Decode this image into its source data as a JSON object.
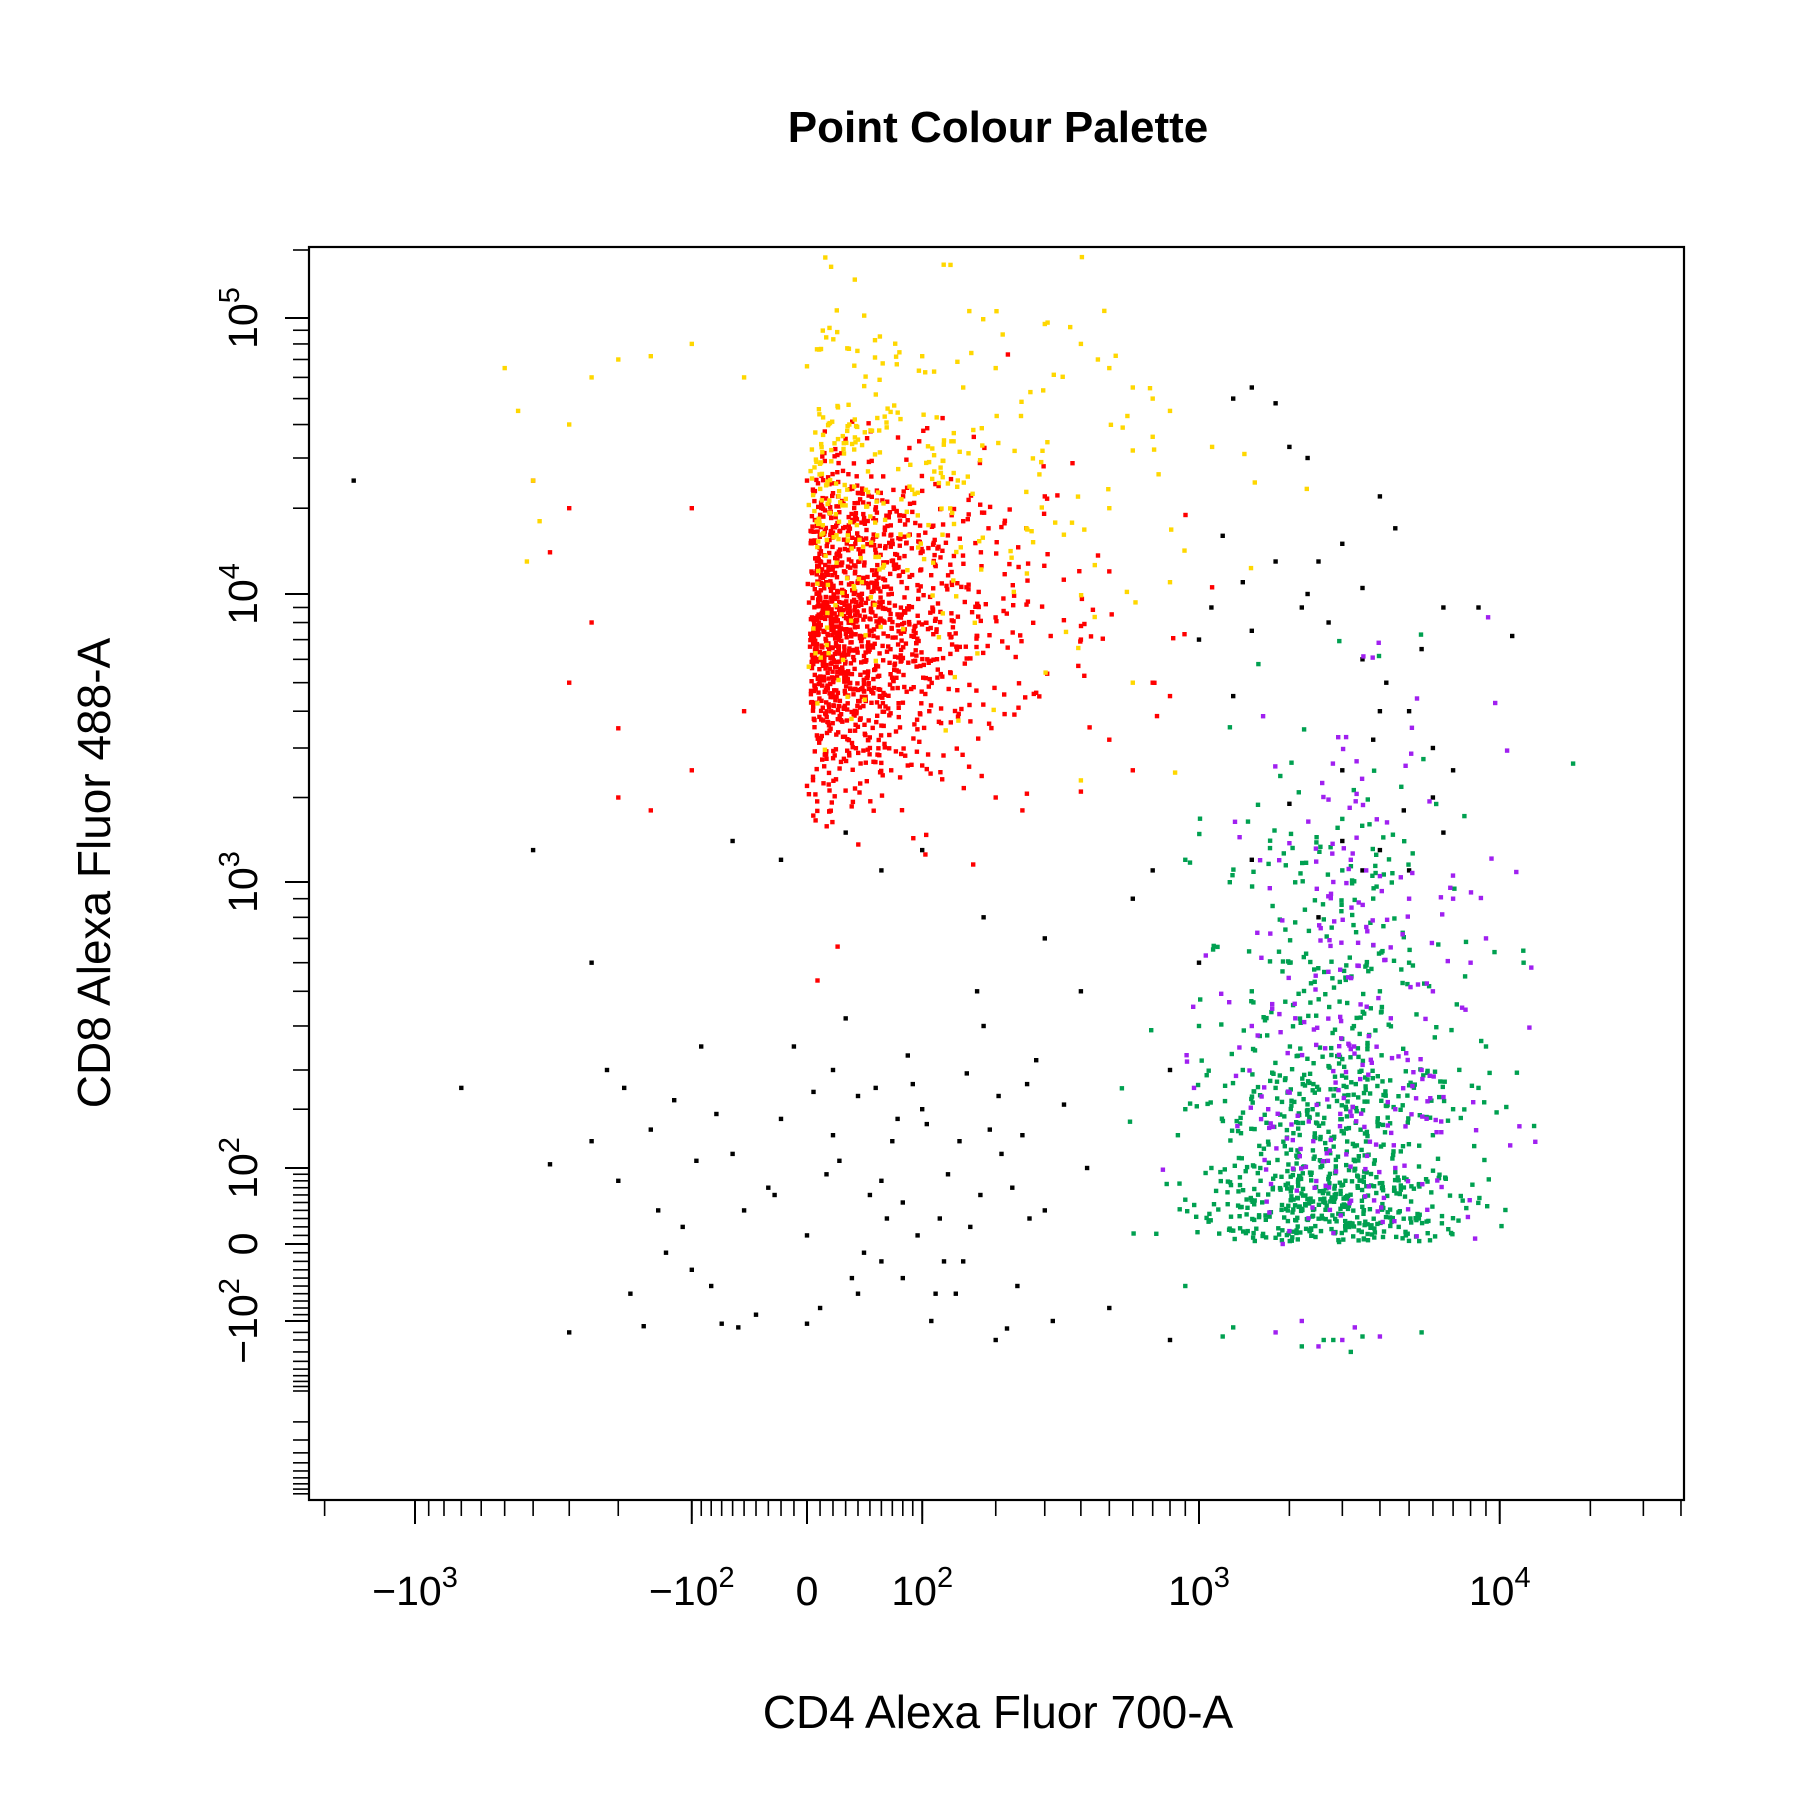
{
  "chart_data": {
    "type": "scatter",
    "title": "Point Colour Palette",
    "xlabel": "CD4 Alexa Fluor 700-A",
    "ylabel": "CD8 Alexa Fluor 488-A",
    "scale": "biexponential (logicle)",
    "grid": false,
    "legend": "none",
    "xlim": [
      -2000,
      20000
    ],
    "ylim": [
      -500,
      170000
    ],
    "x_ticks": [
      {
        "value": -1000,
        "label": "−10",
        "exp": "3"
      },
      {
        "value": -100,
        "label": "−10",
        "exp": "2"
      },
      {
        "value": 0,
        "label": "0",
        "exp": ""
      },
      {
        "value": 100,
        "label": "10",
        "exp": "2"
      },
      {
        "value": 1000,
        "label": "10",
        "exp": "3"
      },
      {
        "value": 10000,
        "label": "10",
        "exp": "4"
      }
    ],
    "y_ticks": [
      {
        "value": -100,
        "label": "−10",
        "exp": "2"
      },
      {
        "value": 0,
        "label": "0",
        "exp": ""
      },
      {
        "value": 100,
        "label": "10",
        "exp": "2"
      },
      {
        "value": 1000,
        "label": "10",
        "exp": "3"
      },
      {
        "value": 10000,
        "label": "10",
        "exp": "4"
      },
      {
        "value": 100000,
        "label": "10",
        "exp": "5"
      }
    ],
    "colors": {
      "black": "#000000",
      "red": "#ff0000",
      "yellow": "#ffd700",
      "green": "#00a050",
      "purple": "#a020f0"
    },
    "series": [
      {
        "color": "#000000",
        "points": [
          [
            -1600,
            25000
          ],
          [
            -700,
            250
          ],
          [
            -400,
            1300
          ],
          [
            -350,
            105
          ],
          [
            -250,
            600
          ],
          [
            -300,
            -200
          ],
          [
            -150,
            160
          ],
          [
            -80,
            -50
          ],
          [
            -50,
            40
          ],
          [
            0,
            10
          ],
          [
            20,
            300
          ],
          [
            40,
            -60
          ],
          [
            60,
            80
          ],
          [
            80,
            -40
          ],
          [
            100,
            200
          ],
          [
            120,
            30
          ],
          [
            150,
            -20
          ],
          [
            170,
            500
          ],
          [
            200,
            -300
          ],
          [
            250,
            150
          ],
          [
            300,
            40
          ],
          [
            -200,
            80
          ],
          [
            -180,
            -60
          ],
          [
            -120,
            220
          ],
          [
            -90,
            350
          ],
          [
            -60,
            120
          ],
          [
            -40,
            -90
          ],
          [
            -20,
            180
          ],
          [
            10,
            -80
          ],
          [
            30,
            420
          ],
          [
            50,
            60
          ],
          [
            70,
            140
          ],
          [
            90,
            260
          ],
          [
            110,
            -100
          ],
          [
            130,
            90
          ],
          [
            160,
            20
          ],
          [
            190,
            160
          ],
          [
            230,
            70
          ],
          [
            280,
            320
          ],
          [
            350,
            210
          ],
          [
            420,
            100
          ],
          [
            500,
            -80
          ],
          [
            -140,
            40
          ],
          [
            -100,
            -30
          ],
          [
            -75,
            190
          ],
          [
            -30,
            70
          ],
          [
            5,
            240
          ],
          [
            25,
            110
          ],
          [
            45,
            -10
          ],
          [
            65,
            30
          ],
          [
            85,
            330
          ],
          [
            105,
            170
          ],
          [
            140,
            -60
          ],
          [
            180,
            400
          ],
          [
            220,
            -160
          ],
          [
            260,
            260
          ],
          [
            320,
            -100
          ],
          [
            -220,
            300
          ],
          [
            -160,
            -140
          ],
          [
            -110,
            20
          ],
          [
            -70,
            -120
          ],
          [
            -10,
            350
          ],
          [
            15,
            90
          ],
          [
            35,
            -40
          ],
          [
            55,
            250
          ],
          [
            75,
            180
          ],
          [
            95,
            10
          ],
          [
            125,
            -20
          ],
          [
            155,
            290
          ],
          [
            210,
            120
          ],
          [
            240,
            -50
          ],
          [
            -250,
            140
          ],
          [
            -190,
            250
          ],
          [
            -130,
            -10
          ],
          [
            -95,
            110
          ],
          [
            -55,
            -150
          ],
          [
            -25,
            60
          ],
          [
            0,
            -120
          ],
          [
            20,
            150
          ],
          [
            40,
            230
          ],
          [
            60,
            -20
          ],
          [
            80,
            50
          ],
          [
            115,
            -60
          ],
          [
            145,
            140
          ],
          [
            175,
            60
          ],
          [
            205,
            230
          ],
          [
            265,
            30
          ],
          [
            -60,
            1400
          ],
          [
            -20,
            1200
          ],
          [
            30,
            1500
          ],
          [
            60,
            1100
          ],
          [
            100,
            1300
          ],
          [
            180,
            800
          ],
          [
            300,
            700
          ],
          [
            400,
            500
          ],
          [
            600,
            900
          ],
          [
            700,
            1100
          ],
          [
            800,
            -300
          ],
          [
            1300,
            50000
          ],
          [
            1500,
            55000
          ],
          [
            1800,
            48000
          ],
          [
            2000,
            33000
          ],
          [
            2300,
            30000
          ],
          [
            1200,
            16000
          ],
          [
            1400,
            11000
          ],
          [
            1800,
            13000
          ],
          [
            2500,
            13000
          ],
          [
            3000,
            15000
          ],
          [
            4000,
            22000
          ],
          [
            4500,
            17000
          ],
          [
            2200,
            9000
          ],
          [
            2700,
            8000
          ],
          [
            3500,
            6000
          ],
          [
            4200,
            5000
          ],
          [
            5000,
            4000
          ],
          [
            6000,
            3000
          ],
          [
            3000,
            2500
          ],
          [
            3800,
            3200
          ],
          [
            4800,
            1800
          ],
          [
            6500,
            1500
          ],
          [
            2000,
            1900
          ],
          [
            3000,
            1400
          ],
          [
            4000,
            1300
          ],
          [
            5000,
            1100
          ],
          [
            6500,
            9000
          ],
          [
            8500,
            9000
          ],
          [
            11000,
            7200
          ],
          [
            5500,
            6500
          ],
          [
            6000,
            2000
          ],
          [
            7000,
            2500
          ],
          [
            3500,
            10500
          ],
          [
            1300,
            4500
          ],
          [
            1000,
            7000
          ],
          [
            1100,
            9000
          ],
          [
            1500,
            7500
          ],
          [
            2300,
            10000
          ],
          [
            4000,
            4000
          ],
          [
            2500,
            800
          ],
          [
            1500,
            1200
          ],
          [
            3500,
            1100
          ],
          [
            1000,
            600
          ],
          [
            800,
            300
          ]
        ]
      },
      {
        "color": "#ff0000",
        "cluster": {
          "cx": 40,
          "cy": 8000,
          "n": 1400,
          "x_sd_log": 0.45,
          "y_sd_log": 0.28
        },
        "points": [
          [
            -400,
            25000
          ],
          [
            -300,
            20000
          ],
          [
            -350,
            14000
          ],
          [
            -250,
            8000
          ],
          [
            -300,
            5000
          ],
          [
            -200,
            3500
          ],
          [
            -200,
            2000
          ],
          [
            -150,
            1800
          ],
          [
            -100,
            2500
          ],
          [
            200,
            2000
          ],
          [
            250,
            1800
          ],
          [
            400,
            2100
          ],
          [
            500,
            3200
          ],
          [
            600,
            2500
          ],
          [
            700,
            5000
          ],
          [
            800,
            4500
          ],
          [
            400,
            7000
          ],
          [
            300,
            22000
          ],
          [
            500,
            12000
          ],
          [
            -100,
            20000
          ],
          [
            0,
            25000
          ],
          [
            100,
            23000
          ],
          [
            150,
            18000
          ],
          [
            -50,
            4000
          ],
          [
            50,
            3000
          ],
          [
            100,
            2600
          ],
          [
            0,
            2200
          ]
        ]
      },
      {
        "color": "#ffd700",
        "cluster": {
          "cx": 60,
          "cy": 25000,
          "n": 330,
          "x_sd_log": 0.55,
          "y_sd_log": 0.35
        },
        "points": [
          [
            -500,
            65000
          ],
          [
            -450,
            45000
          ],
          [
            -400,
            25000
          ],
          [
            -380,
            18000
          ],
          [
            -420,
            13000
          ],
          [
            -250,
            60000
          ],
          [
            -200,
            70000
          ],
          [
            -150,
            72000
          ],
          [
            -100,
            80000
          ],
          [
            0,
            66000
          ],
          [
            100,
            72000
          ],
          [
            200,
            65000
          ],
          [
            300,
            95000
          ],
          [
            400,
            80000
          ],
          [
            500,
            65000
          ],
          [
            600,
            55000
          ],
          [
            700,
            50000
          ],
          [
            800,
            45000
          ],
          [
            700,
            36000
          ],
          [
            600,
            32000
          ],
          [
            500,
            20000
          ],
          [
            600,
            5000
          ],
          [
            400,
            2300
          ],
          [
            800,
            11000
          ],
          [
            -300,
            40000
          ],
          [
            -50,
            60000
          ],
          [
            150,
            55000
          ]
        ]
      },
      {
        "color": "#00a050",
        "cluster": {
          "cx": 2800,
          "cy": 130,
          "n": 900,
          "x_sd_log": 0.22,
          "y_sd_log": 0.6
        },
        "points": [
          [
            900,
            1200
          ],
          [
            1000,
            400
          ],
          [
            850,
            150
          ],
          [
            900,
            -50
          ],
          [
            900,
            200
          ],
          [
            1200,
            -250
          ],
          [
            1500,
            500
          ],
          [
            2000,
            600
          ],
          [
            2200,
            -350
          ],
          [
            2600,
            -300
          ],
          [
            3200,
            -400
          ],
          [
            4000,
            500
          ],
          [
            5000,
            600
          ],
          [
            6000,
            150
          ],
          [
            7000,
            200
          ],
          [
            12000,
            600
          ],
          [
            9000,
            350
          ],
          [
            8500,
            250
          ],
          [
            5500,
            -200
          ],
          [
            3000,
            1100
          ],
          [
            3500,
            -250
          ],
          [
            2800,
            -300
          ],
          [
            1800,
            250
          ],
          [
            1600,
            100
          ],
          [
            1300,
            -150
          ],
          [
            1100,
            100
          ],
          [
            1400,
            300
          ]
        ]
      },
      {
        "color": "#a020f0",
        "cluster": {
          "cx": 3200,
          "cy": 320,
          "n": 270,
          "x_sd_log": 0.25,
          "y_sd_log": 0.5
        },
        "points": [
          [
            3200,
            1200
          ],
          [
            3600,
            1100
          ],
          [
            4000,
            1050
          ],
          [
            2800,
            1000
          ],
          [
            5000,
            900
          ],
          [
            7000,
            900
          ],
          [
            9000,
            700
          ],
          [
            8000,
            600
          ],
          [
            7500,
            450
          ],
          [
            6000,
            500
          ],
          [
            5500,
            300
          ],
          [
            4500,
            200
          ],
          [
            1500,
            400
          ],
          [
            1700,
            200
          ],
          [
            1900,
            0
          ],
          [
            1800,
            -200
          ],
          [
            2200,
            -100
          ],
          [
            3000,
            -300
          ],
          [
            2500,
            -350
          ],
          [
            4000,
            -250
          ],
          [
            3300,
            -150
          ],
          [
            4500,
            100
          ]
        ]
      }
    ]
  }
}
